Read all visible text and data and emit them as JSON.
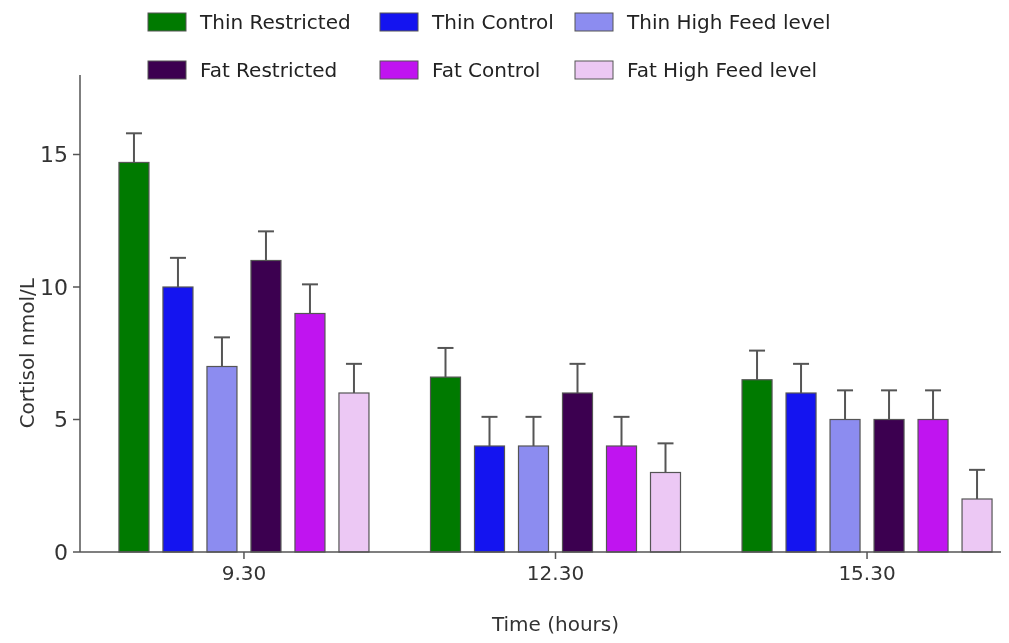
{
  "chart_data": {
    "type": "bar",
    "xlabel": "Time (hours)",
    "ylabel": "Cortisol nmol/L",
    "categories": [
      "9.30",
      "12.30",
      "15.30"
    ],
    "series": [
      {
        "name": "Thin Restricted",
        "color": "#007a00",
        "values": [
          14.7,
          6.6,
          6.5
        ],
        "errors": [
          [
            14.7,
            15.8
          ],
          [
            6.6,
            7.7
          ],
          [
            6.5,
            7.6
          ]
        ]
      },
      {
        "name": "Thin Control",
        "color": "#1414f0",
        "values": [
          10,
          4,
          6
        ],
        "errors": [
          [
            10,
            11.1
          ],
          [
            4,
            5.1
          ],
          [
            6,
            7.1
          ]
        ]
      },
      {
        "name": "Thin High Feed level",
        "color": "#8c8cf0",
        "values": [
          7,
          4,
          5
        ],
        "errors": [
          [
            7,
            8.1
          ],
          [
            4,
            5.1
          ],
          [
            5,
            6.1
          ]
        ]
      },
      {
        "name": "Fat Restricted",
        "color": "#3c0050",
        "values": [
          11,
          6,
          5
        ],
        "errors": [
          [
            11,
            12.1
          ],
          [
            6,
            7.1
          ],
          [
            5,
            6.1
          ]
        ]
      },
      {
        "name": "Fat Control",
        "color": "#c014f0",
        "values": [
          9,
          4,
          5
        ],
        "errors": [
          [
            9,
            10.1
          ],
          [
            4,
            5.1
          ],
          [
            5,
            6.1
          ]
        ]
      },
      {
        "name": "Fat High Feed level",
        "color": "#ecc8f4",
        "values": [
          6,
          3,
          2
        ],
        "errors": [
          [
            6,
            7.1
          ],
          [
            3,
            4.1
          ],
          [
            2,
            3.1
          ]
        ]
      }
    ],
    "ylim": [
      0,
      18
    ],
    "yticks": [
      0,
      5,
      10,
      15
    ],
    "grid": false,
    "legend": "top"
  }
}
